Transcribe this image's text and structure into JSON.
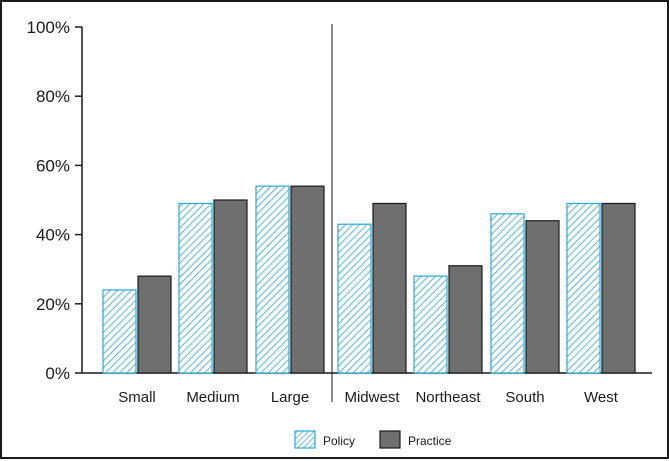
{
  "chart_data": {
    "type": "bar",
    "categories": [
      "Small",
      "Medium",
      "Large",
      "Midwest",
      "Northeast",
      "South",
      "West"
    ],
    "series": [
      {
        "name": "Policy",
        "values": [
          24,
          49,
          54,
          43,
          28,
          46,
          49
        ]
      },
      {
        "name": "Practice",
        "values": [
          28,
          50,
          54,
          49,
          31,
          44,
          49
        ]
      }
    ],
    "ylim": [
      0,
      100
    ],
    "y_ticks": [
      "0%",
      "20%",
      "40%",
      "60%",
      "80%",
      "100%"
    ],
    "y_tick_values": [
      0,
      20,
      40,
      60,
      80,
      100
    ],
    "title": "",
    "xlabel": "",
    "ylabel": "",
    "group_divider_after_category": "Large",
    "grid": false,
    "legend_position": "bottom-center",
    "colors": {
      "policy_fill": "#ffffff",
      "policy_hatch": "#29a8d6",
      "practice_fill": "#6f6f70",
      "practice_stroke": "#1a1a1a",
      "axis": "#1a1a1a",
      "frame": "#1a1a1a"
    },
    "series_style": [
      "hatched",
      "solid"
    ]
  }
}
